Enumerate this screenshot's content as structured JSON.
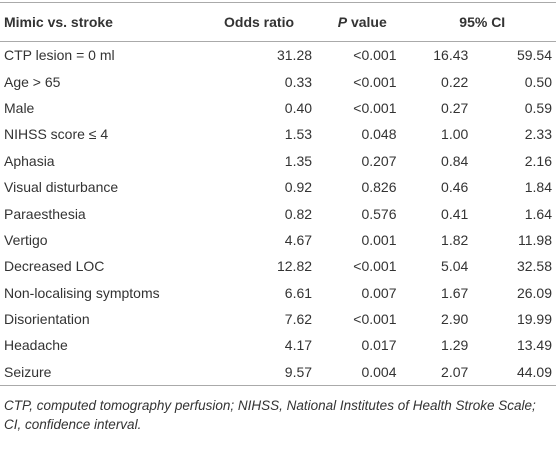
{
  "table": {
    "header": [
      "Mimic vs. stroke",
      "Odds ratio",
      "P value",
      "95% CI"
    ],
    "rows": [
      [
        "CTP lesion = 0 ml",
        "31.28",
        "<0.001",
        "16.43",
        "59.54"
      ],
      [
        "Age > 65",
        "0.33",
        "<0.001",
        "0.22",
        "0.50"
      ],
      [
        "Male",
        "0.40",
        "<0.001",
        "0.27",
        "0.59"
      ],
      [
        "NIHSS score ≤ 4",
        "1.53",
        "0.048",
        "1.00",
        "2.33"
      ],
      [
        "Aphasia",
        "1.35",
        "0.207",
        "0.84",
        "2.16"
      ],
      [
        "Visual disturbance",
        "0.92",
        "0.826",
        "0.46",
        "1.84"
      ],
      [
        "Paraesthesia",
        "0.82",
        "0.576",
        "0.41",
        "1.64"
      ],
      [
        "Vertigo",
        "4.67",
        "0.001",
        "1.82",
        "11.98"
      ],
      [
        "Decreased LOC",
        "12.82",
        "<0.001",
        "5.04",
        "32.58"
      ],
      [
        "Non-localising symptoms",
        "6.61",
        "0.007",
        "1.67",
        "26.09"
      ],
      [
        "Disorientation",
        "7.62",
        "<0.001",
        "2.90",
        "19.99"
      ],
      [
        "Headache",
        "4.17",
        "0.017",
        "1.29",
        "13.49"
      ],
      [
        "Seizure",
        "9.57",
        "0.004",
        "2.07",
        "44.09"
      ]
    ],
    "footnote": "CTP, computed tomography perfusion; NIHSS, National Institutes of Health Stroke Scale; CI, confidence interval."
  }
}
